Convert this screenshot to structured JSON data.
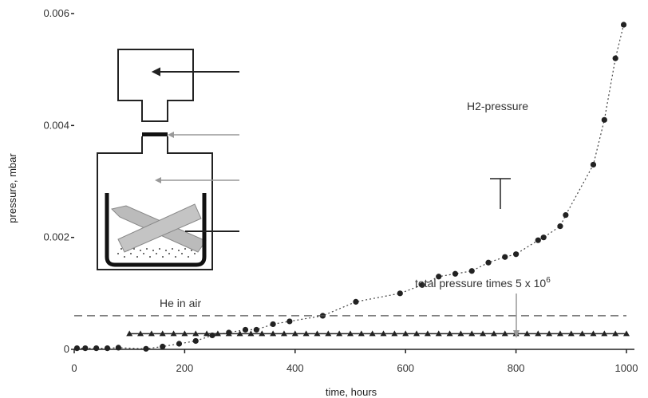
{
  "chart_data": {
    "type": "scatter",
    "xlabel": "time, hours",
    "ylabel": "pressure, mbar",
    "xlim": [
      0,
      1000
    ],
    "ylim": [
      0,
      0.006
    ],
    "xticks": [
      "0",
      "200",
      "400",
      "600",
      "800",
      "1000"
    ],
    "yticks": [
      {
        "value": 0,
        "label": "0"
      },
      {
        "value": 0.002,
        "label": "0.002"
      },
      {
        "value": 0.004,
        "label": "0.004"
      },
      {
        "value": 0.006,
        "label": "0.006"
      }
    ],
    "series": [
      {
        "name": "H2-pressure",
        "marker": "circle",
        "line": "dotted",
        "x": [
          5,
          20,
          40,
          60,
          80,
          130,
          160,
          190,
          220,
          250,
          280,
          310,
          330,
          360,
          390,
          450,
          510,
          590,
          630,
          660,
          690,
          720,
          750,
          780,
          800,
          840,
          850,
          880,
          890,
          940,
          960,
          980,
          995
        ],
        "y": [
          2e-05,
          2e-05,
          2e-05,
          2e-05,
          3e-05,
          1e-05,
          5e-05,
          0.0001,
          0.00015,
          0.00025,
          0.0003,
          0.00035,
          0.00035,
          0.00045,
          0.0005,
          0.0006,
          0.00085,
          0.001,
          0.00115,
          0.0013,
          0.00135,
          0.0014,
          0.00155,
          0.00165,
          0.0017,
          0.00195,
          0.002,
          0.0022,
          0.0024,
          0.0033,
          0.0041,
          0.0052,
          0.0058
        ]
      },
      {
        "name": "total pressure times 5 x 10^6",
        "marker": "triangle",
        "line": "solid",
        "x": [
          100,
          120,
          140,
          160,
          180,
          200,
          220,
          240,
          260,
          280,
          300,
          320,
          340,
          360,
          380,
          400,
          420,
          440,
          460,
          480,
          500,
          520,
          540,
          560,
          580,
          600,
          620,
          640,
          660,
          680,
          700,
          720,
          740,
          760,
          780,
          800,
          820,
          840,
          860,
          880,
          900,
          920,
          940,
          960,
          980,
          1000
        ],
        "y": [
          0.00028,
          0.00028,
          0.00028,
          0.00028,
          0.00028,
          0.00028,
          0.00028,
          0.00028,
          0.00028,
          0.00028,
          0.00028,
          0.00028,
          0.00028,
          0.00028,
          0.00028,
          0.00028,
          0.00028,
          0.00028,
          0.00028,
          0.00028,
          0.00028,
          0.00028,
          0.00028,
          0.00028,
          0.00028,
          0.00028,
          0.00028,
          0.00028,
          0.00028,
          0.00028,
          0.00028,
          0.00028,
          0.00028,
          0.00028,
          0.00028,
          0.00028,
          0.00028,
          0.00028,
          0.00028,
          0.00028,
          0.00028,
          0.00028,
          0.00028,
          0.00028,
          0.00028,
          0.00028
        ]
      },
      {
        "name": "He in air",
        "line": "dashed",
        "x": [
          0,
          1000
        ],
        "y": [
          0.0006,
          0.0006
        ]
      }
    ],
    "annotations": {
      "h2_label": "H2-pressure",
      "total_label": "total pressure times 5 x 10",
      "total_label_sup": "6",
      "he_label": "He in air"
    },
    "inset": "apparatus schematic"
  }
}
